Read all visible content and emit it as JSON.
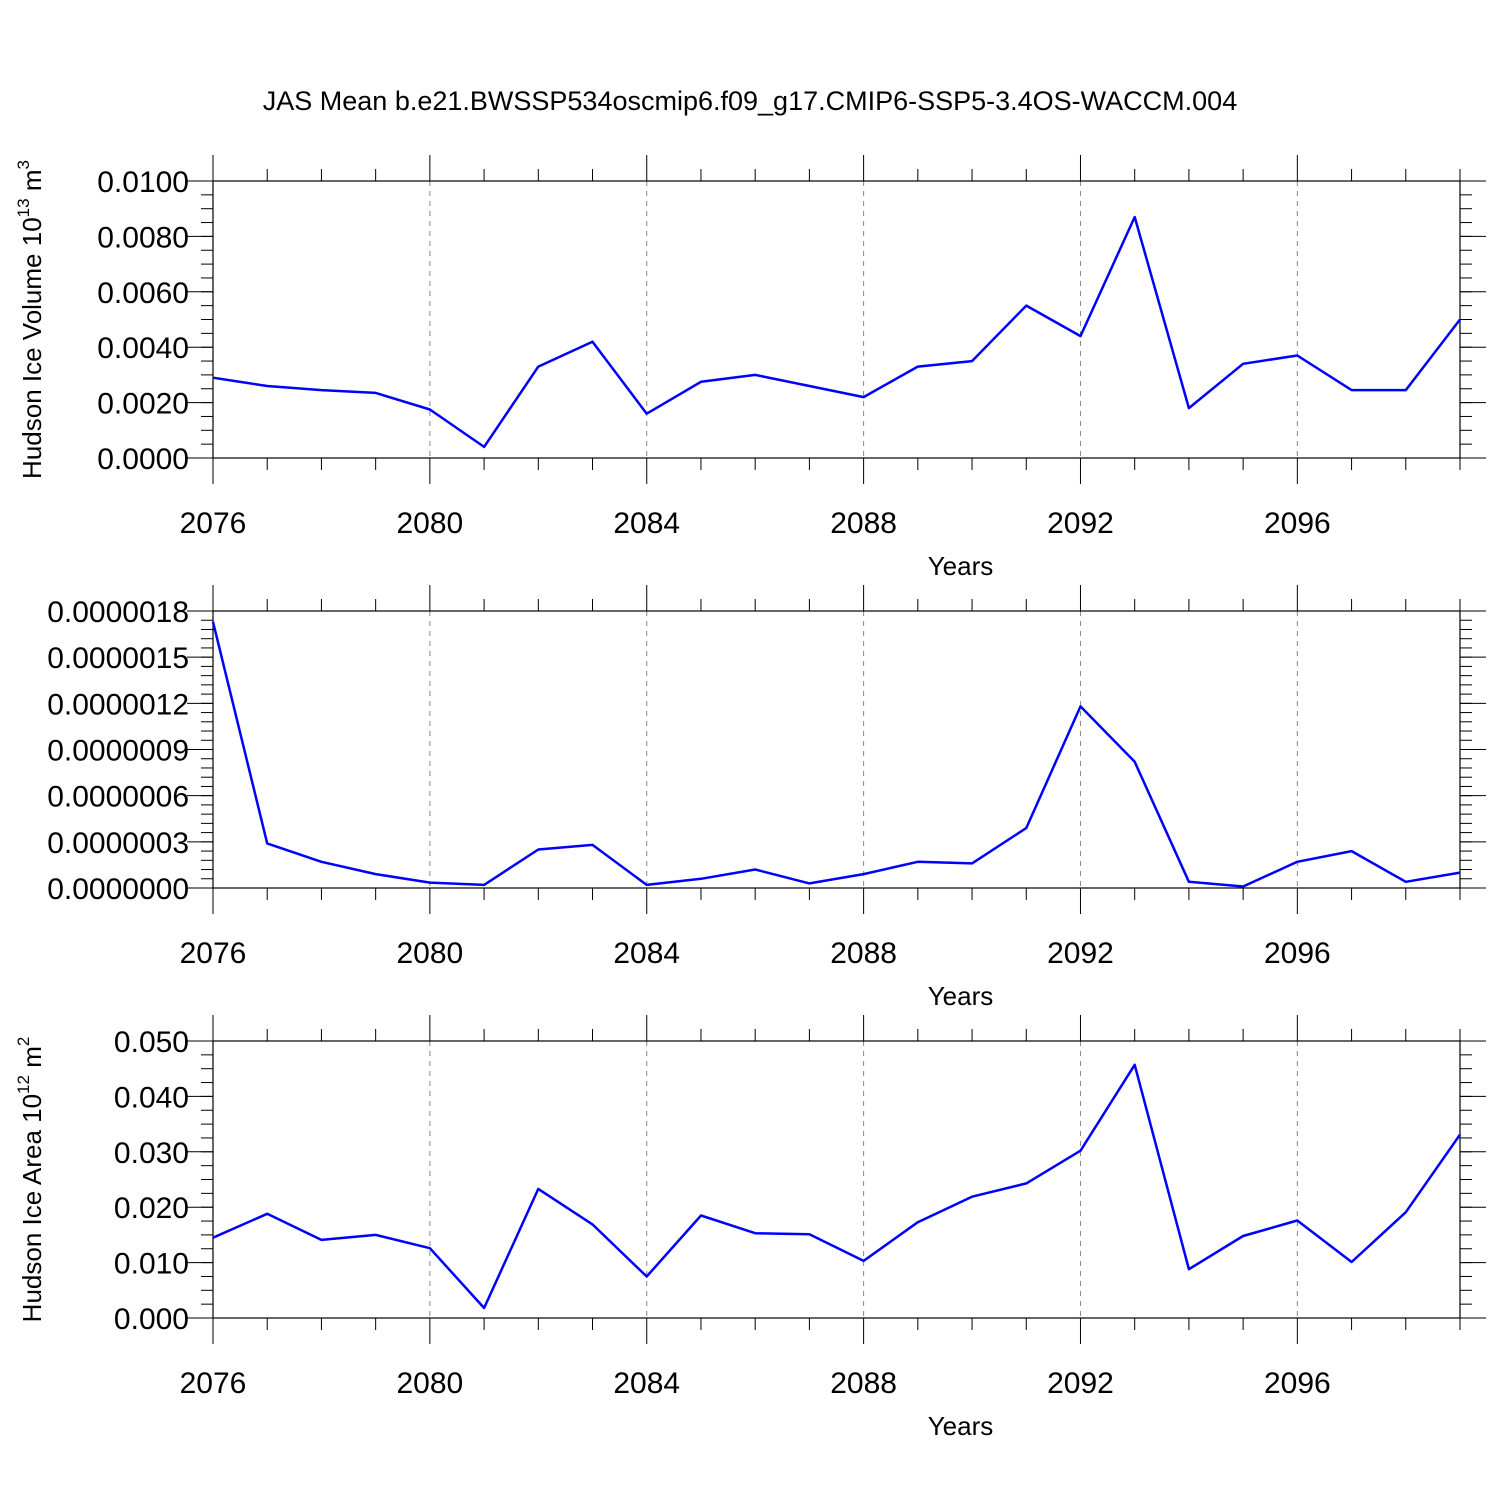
{
  "title": "JAS Mean b.e21.BWSSP534oscmip6.f09_g17.CMIP6-SSP5-3.4OS-WACCM.004",
  "colors": {
    "line": "#0000ff",
    "grid": "#888888",
    "frame": "#000000"
  },
  "chart_data": [
    {
      "type": "line",
      "xlabel": "Years",
      "ylabel": "Hudson Ice Volume 10",
      "ylabel_exp": "13",
      "ylabel_unit": " m",
      "ylabel_unit_exp": "3",
      "xlim": [
        2076,
        2099
      ],
      "ylim": [
        0,
        0.01
      ],
      "xticks": [
        2076,
        2080,
        2084,
        2088,
        2092,
        2096
      ],
      "yticks": [
        0,
        0.002,
        0.004,
        0.006,
        0.008,
        0.01
      ],
      "ytick_labels": [
        "0.0000",
        "0.0020",
        "0.0040",
        "0.0060",
        "0.0080",
        "0.0100"
      ],
      "y_minor_step": 0.0005,
      "grid": "vertical dashed at major x ticks",
      "x": [
        2076,
        2077,
        2078,
        2079,
        2080,
        2081,
        2082,
        2083,
        2084,
        2085,
        2086,
        2087,
        2088,
        2089,
        2090,
        2091,
        2092,
        2093,
        2094,
        2095,
        2096,
        2097,
        2098,
        2099
      ],
      "values": [
        0.0029,
        0.0026,
        0.00245,
        0.00235,
        0.00175,
        0.0004,
        0.0033,
        0.0042,
        0.0016,
        0.00275,
        0.003,
        0.0026,
        0.0022,
        0.0033,
        0.0035,
        0.0055,
        0.0044,
        0.0087,
        0.0018,
        0.0034,
        0.0037,
        0.00245,
        0.00245,
        0.005
      ]
    },
    {
      "type": "line",
      "xlabel": "Years",
      "ylabel": "",
      "xlim": [
        2076,
        2099
      ],
      "ylim": [
        0,
        1.8e-06
      ],
      "xticks": [
        2076,
        2080,
        2084,
        2088,
        2092,
        2096
      ],
      "yticks": [
        0,
        3e-07,
        6e-07,
        9e-07,
        1.2e-06,
        1.5e-06,
        1.8e-06
      ],
      "ytick_labels": [
        "0.0000000",
        "0.0000003",
        "0.0000006",
        "0.0000009",
        "0.0000012",
        "0.0000015",
        "0.0000018"
      ],
      "y_minor_step": 6e-08,
      "grid": "vertical dashed at major x ticks",
      "x": [
        2076,
        2077,
        2078,
        2079,
        2080,
        2081,
        2082,
        2083,
        2084,
        2085,
        2086,
        2087,
        2088,
        2089,
        2090,
        2091,
        2092,
        2093,
        2094,
        2095,
        2096,
        2097,
        2098,
        2099
      ],
      "values": [
        1.73e-06,
        2.9e-07,
        1.7e-07,
        9e-08,
        3.5e-08,
        2e-08,
        2.5e-07,
        2.8e-07,
        2e-08,
        6e-08,
        1.2e-07,
        3e-08,
        9e-08,
        1.7e-07,
        1.6e-07,
        3.9e-07,
        1.18e-06,
        8.2e-07,
        4e-08,
        1e-08,
        1.7e-07,
        2.4e-07,
        4e-08,
        1e-07
      ]
    },
    {
      "type": "line",
      "xlabel": "Years",
      "ylabel": "Hudson Ice Area 10",
      "ylabel_exp": "12",
      "ylabel_unit": " m",
      "ylabel_unit_exp": "2",
      "xlim": [
        2076,
        2099
      ],
      "ylim": [
        0,
        0.05
      ],
      "xticks": [
        2076,
        2080,
        2084,
        2088,
        2092,
        2096
      ],
      "yticks": [
        0,
        0.01,
        0.02,
        0.03,
        0.04,
        0.05
      ],
      "ytick_labels": [
        "0.000",
        "0.010",
        "0.020",
        "0.030",
        "0.040",
        "0.050"
      ],
      "y_minor_step": 0.0025,
      "grid": "vertical dashed at major x ticks",
      "x": [
        2076,
        2077,
        2078,
        2079,
        2080,
        2081,
        2082,
        2083,
        2084,
        2085,
        2086,
        2087,
        2088,
        2089,
        2090,
        2091,
        2092,
        2093,
        2094,
        2095,
        2096,
        2097,
        2098,
        2099
      ],
      "values": [
        0.0145,
        0.0188,
        0.0141,
        0.015,
        0.0126,
        0.0018,
        0.0233,
        0.0169,
        0.0075,
        0.0185,
        0.0153,
        0.0151,
        0.0103,
        0.0173,
        0.0219,
        0.0243,
        0.0302,
        0.0457,
        0.0088,
        0.0148,
        0.0176,
        0.0101,
        0.0191,
        0.0331
      ]
    }
  ]
}
